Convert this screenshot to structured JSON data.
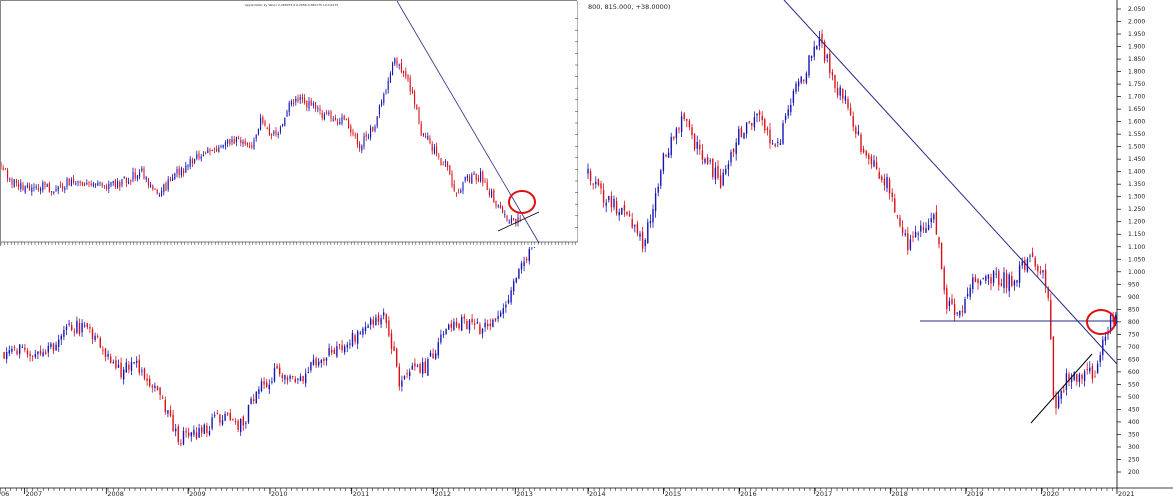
{
  "main_header": "800, 815.000, +38.0000)",
  "inset_header": "Apple Data: 2y Yahoo 2.260075.0 0.2056 0.382175 10.0.0175",
  "chart_data": [
    {
      "type": "candlestick",
      "panel": "main-left",
      "x_tick_labels": [
        "06",
        "2007",
        "2008",
        "2009",
        "2010",
        "2011",
        "2012",
        "2013"
      ],
      "price_path": [
        [
          "2006-10",
          670
        ],
        [
          "2006-12",
          690
        ],
        [
          "2007-02",
          640
        ],
        [
          "2007-05",
          700
        ],
        [
          "2007-07",
          790
        ],
        [
          "2007-09",
          780
        ],
        [
          "2007-12",
          730
        ],
        [
          "2008-01",
          680
        ],
        [
          "2008-03",
          600
        ],
        [
          "2008-05",
          630
        ],
        [
          "2008-08",
          550
        ],
        [
          "2008-10",
          430
        ],
        [
          "2008-11",
          350
        ],
        [
          "2009-01",
          330
        ],
        [
          "2009-03",
          360
        ],
        [
          "2009-05",
          410
        ],
        [
          "2009-07",
          420
        ],
        [
          "2009-09",
          380
        ],
        [
          "2009-11",
          530
        ],
        [
          "2010-02",
          600
        ],
        [
          "2010-05",
          560
        ],
        [
          "2010-08",
          660
        ],
        [
          "2010-12",
          700
        ],
        [
          "2011-03",
          780
        ],
        [
          "2011-06",
          820
        ],
        [
          "2011-08",
          560
        ],
        [
          "2011-10",
          600
        ],
        [
          "2011-12",
          620
        ],
        [
          "2012-03",
          800
        ],
        [
          "2012-06",
          790
        ],
        [
          "2012-09",
          770
        ],
        [
          "2012-12",
          900
        ],
        [
          "2013-02",
          1050
        ],
        [
          "2013-04",
          1100
        ]
      ]
    },
    {
      "type": "candlestick",
      "panel": "main-right",
      "x_tick_labels": [
        "2014",
        "2015",
        "2016",
        "2017",
        "2018",
        "2019",
        "2020",
        "2021"
      ],
      "y_tick_labels": [
        "200",
        "250",
        "300",
        "350",
        "400",
        "450",
        "500",
        "550",
        "600",
        "650",
        "700",
        "750",
        "800",
        "850",
        "900",
        "950",
        "1.000",
        "1.050",
        "1.100",
        "1.150",
        "1.200",
        "1.250",
        "1.300",
        "1.350",
        "1.400",
        "1.450",
        "1.500",
        "1.550",
        "1.600",
        "1.650",
        "1.700",
        "1.750",
        "1.800",
        "1.850",
        "1.900",
        "1.950",
        "2.000",
        "2.050"
      ],
      "ylim": [
        200,
        2050
      ],
      "price_path": [
        [
          "2014-01",
          1380
        ],
        [
          "2014-04",
          1280
        ],
        [
          "2014-07",
          1240
        ],
        [
          "2014-10",
          1110
        ],
        [
          "2015-01",
          1450
        ],
        [
          "2015-04",
          1600
        ],
        [
          "2015-07",
          1480
        ],
        [
          "2015-10",
          1350
        ],
        [
          "2016-01",
          1550
        ],
        [
          "2016-04",
          1620
        ],
        [
          "2016-07",
          1500
        ],
        [
          "2016-10",
          1720
        ],
        [
          "2017-01",
          1900
        ],
        [
          "2017-02",
          1920
        ],
        [
          "2017-04",
          1750
        ],
        [
          "2017-06",
          1700
        ],
        [
          "2017-09",
          1450
        ],
        [
          "2017-12",
          1380
        ],
        [
          "2018-02",
          1250
        ],
        [
          "2018-04",
          1100
        ],
        [
          "2018-06",
          1200
        ],
        [
          "2018-08",
          1200
        ],
        [
          "2018-10",
          870
        ],
        [
          "2018-12",
          830
        ],
        [
          "2019-02",
          960
        ],
        [
          "2019-05",
          980
        ],
        [
          "2019-08",
          960
        ],
        [
          "2019-11",
          1060
        ],
        [
          "2019-12",
          1040
        ],
        [
          "2020-02",
          950
        ],
        [
          "2020-03",
          470
        ],
        [
          "2020-05",
          580
        ],
        [
          "2020-08",
          580
        ],
        [
          "2020-10",
          620
        ],
        [
          "2020-11",
          750
        ],
        [
          "2020-12",
          800
        ],
        [
          "2021-01",
          815
        ]
      ],
      "annotations": {
        "horizontal_level": 800,
        "descending_trendline": "from the 2017 high through the late-2019 peak",
        "ascending_trendline": "from the 2020 low",
        "highlight": "red circle around the breakout near 800"
      }
    },
    {
      "type": "candlestick",
      "panel": "inset",
      "price_path": [
        [
          0,
          1370
        ],
        [
          8,
          1300
        ],
        [
          20,
          1270
        ],
        [
          35,
          1290
        ],
        [
          50,
          1260
        ],
        [
          65,
          1290
        ],
        [
          80,
          1300
        ],
        [
          95,
          1270
        ],
        [
          110,
          1280
        ],
        [
          125,
          1300
        ],
        [
          140,
          1340
        ],
        [
          150,
          1280
        ],
        [
          160,
          1250
        ],
        [
          175,
          1330
        ],
        [
          190,
          1380
        ],
        [
          205,
          1420
        ],
        [
          220,
          1450
        ],
        [
          235,
          1470
        ],
        [
          250,
          1450
        ],
        [
          260,
          1560
        ],
        [
          275,
          1480
        ],
        [
          290,
          1640
        ],
        [
          300,
          1650
        ],
        [
          315,
          1610
        ],
        [
          330,
          1570
        ],
        [
          345,
          1550
        ],
        [
          360,
          1450
        ],
        [
          375,
          1560
        ],
        [
          385,
          1700
        ],
        [
          393,
          1840
        ],
        [
          400,
          1780
        ],
        [
          410,
          1700
        ],
        [
          420,
          1520
        ],
        [
          430,
          1450
        ],
        [
          445,
          1360
        ],
        [
          455,
          1260
        ],
        [
          465,
          1300
        ],
        [
          480,
          1320
        ],
        [
          490,
          1250
        ],
        [
          500,
          1170
        ],
        [
          510,
          1120
        ],
        [
          520,
          1130
        ]
      ],
      "annotations": {
        "descending_trendline": "from the top through the breakout",
        "ascending_trendline": "from the recent low",
        "highlight": "red circle around the breakout"
      }
    }
  ]
}
